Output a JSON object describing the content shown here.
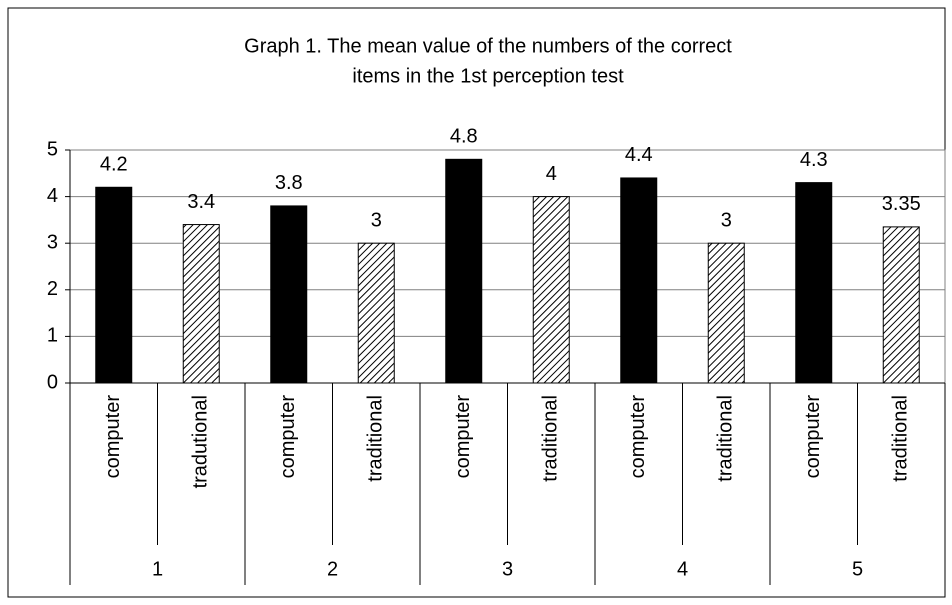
{
  "chart_data": {
    "type": "bar",
    "title": [
      "Graph 1. The mean value of the numbers of the correct",
      "items in the 1st perception test"
    ],
    "categories": [
      "computer",
      "tradutional",
      "computer",
      "traditional",
      "computer",
      "traditional",
      "computer",
      "traditional",
      "computer",
      "traditional"
    ],
    "groups": [
      "1",
      "2",
      "3",
      "4",
      "5"
    ],
    "values": [
      4.2,
      3.4,
      3.8,
      3,
      4.8,
      4,
      4.4,
      3,
      4.3,
      3.35
    ],
    "bar_fill": [
      "solid",
      "hatched",
      "solid",
      "hatched",
      "solid",
      "hatched",
      "solid",
      "hatched",
      "solid",
      "hatched"
    ],
    "color": "#000000",
    "ylim": [
      0,
      5
    ],
    "yticks": [
      0,
      1,
      2,
      3,
      4,
      5
    ],
    "grid": true
  }
}
